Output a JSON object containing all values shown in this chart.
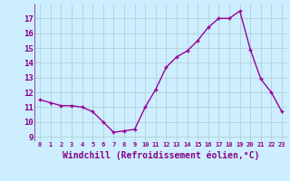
{
  "x": [
    0,
    1,
    2,
    3,
    4,
    5,
    6,
    7,
    8,
    9,
    10,
    11,
    12,
    13,
    14,
    15,
    16,
    17,
    18,
    19,
    20,
    21,
    22,
    23
  ],
  "y": [
    11.5,
    11.3,
    11.1,
    11.1,
    11.0,
    10.7,
    10.0,
    9.3,
    9.4,
    9.5,
    11.0,
    12.2,
    13.7,
    14.4,
    14.8,
    15.5,
    16.4,
    17.0,
    17.0,
    17.5,
    14.9,
    12.9,
    12.0,
    10.7
  ],
  "line_color": "#990099",
  "marker": "+",
  "marker_size": 3.5,
  "marker_edge_width": 1.0,
  "xlabel": "Windchill (Refroidissement éolien,°C)",
  "xlabel_fontsize": 7,
  "ylabel_ticks": [
    9,
    10,
    11,
    12,
    13,
    14,
    15,
    16,
    17
  ],
  "xtick_labels": [
    "0",
    "1",
    "2",
    "3",
    "4",
    "5",
    "6",
    "7",
    "8",
    "9",
    "10",
    "11",
    "12",
    "13",
    "14",
    "15",
    "16",
    "17",
    "18",
    "19",
    "20",
    "21",
    "22",
    "23"
  ],
  "ylim": [
    8.7,
    18.0
  ],
  "xlim": [
    -0.5,
    23.5
  ],
  "background_color": "#cceeff",
  "grid_color": "#aacccc",
  "tick_label_color": "#880088",
  "line_width": 1.0,
  "fig_width": 3.2,
  "fig_height": 2.0,
  "dpi": 100
}
